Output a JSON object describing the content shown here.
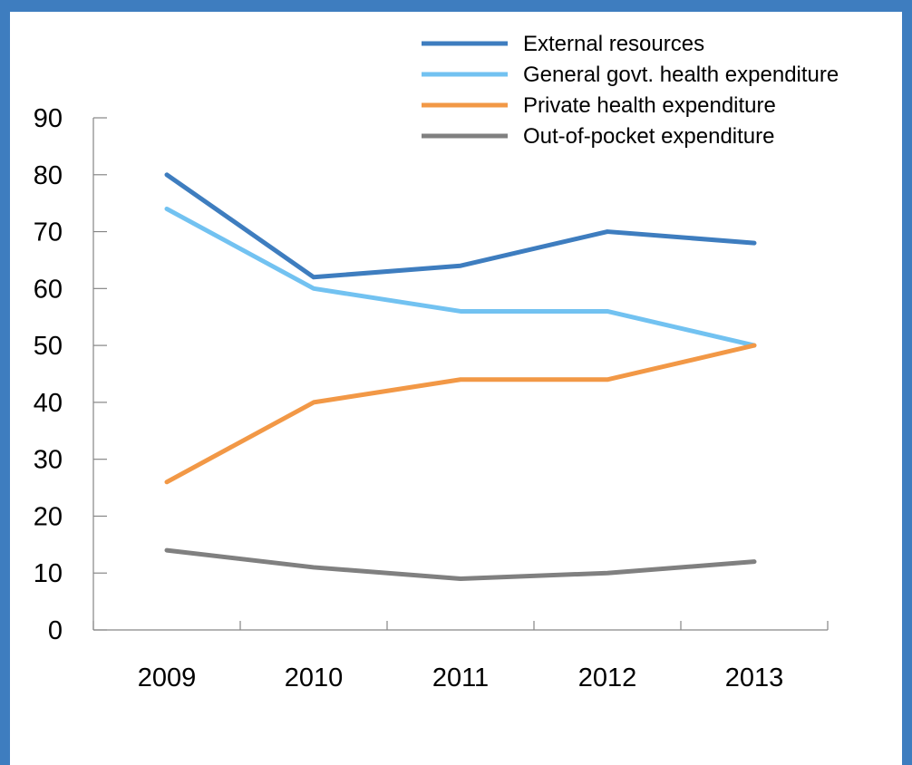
{
  "chart_data": {
    "type": "line",
    "title": "",
    "xlabel": "",
    "ylabel": "",
    "categories": [
      "2009",
      "2010",
      "2011",
      "2012",
      "2013"
    ],
    "ylim": [
      0,
      90
    ],
    "yticks": [
      "0",
      "10",
      "20",
      "30",
      "40",
      "50",
      "60",
      "70",
      "80",
      "90"
    ],
    "grid": false,
    "legend_position": "top-right",
    "series": [
      {
        "name": "External resources",
        "values": [
          80,
          62,
          64,
          70,
          68
        ],
        "color": "#3e7dbf"
      },
      {
        "name": "General govt. health expenditure",
        "values": [
          74,
          60,
          56,
          56,
          50
        ],
        "color": "#72c2f1"
      },
      {
        "name": "Private health expenditure",
        "values": [
          26,
          40,
          44,
          44,
          50
        ],
        "color": "#f29846"
      },
      {
        "name": "Out-of-pocket expenditure",
        "values": [
          14,
          11,
          9,
          10,
          12
        ],
        "color": "#808080"
      }
    ]
  }
}
